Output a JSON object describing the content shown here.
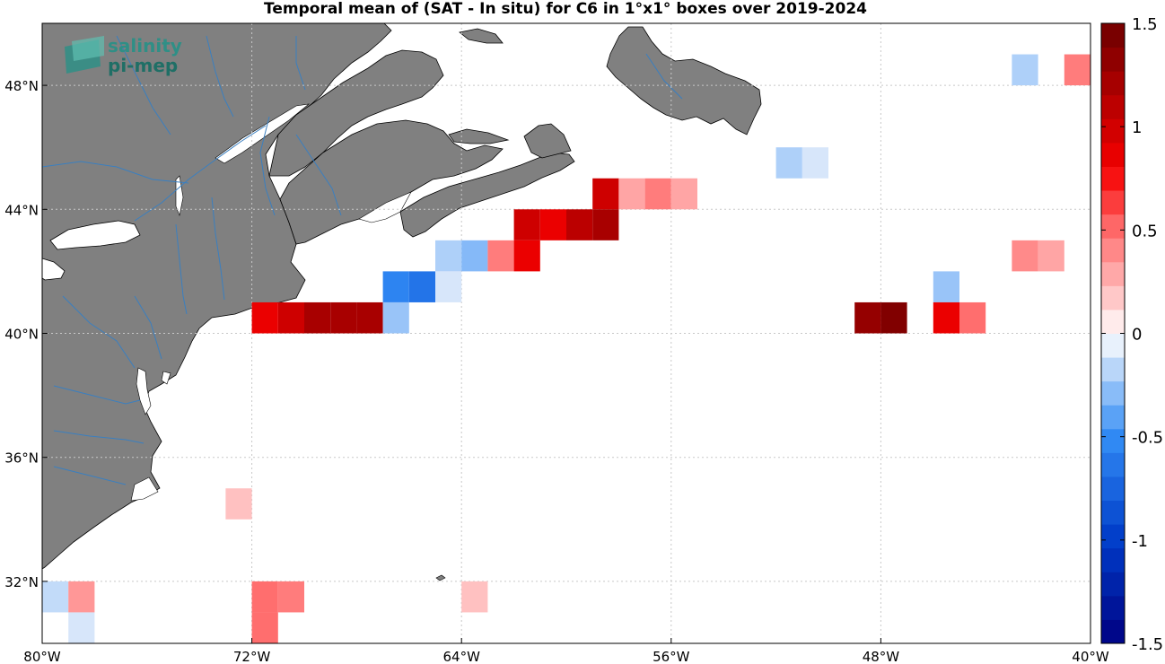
{
  "title": "Temporal mean of (SAT - In situ) for C6 in 1°x1° boxes over 2019-2024",
  "logo": {
    "line1": "salinity",
    "line2": "pi-mep"
  },
  "map": {
    "lon_range": [
      -80,
      -40
    ],
    "lat_range": [
      30,
      50
    ],
    "grid": true,
    "land_color": "#808080",
    "river_color": "#3a7fc0",
    "lon_ticks": [
      {
        "lon": -80,
        "label": "80°W"
      },
      {
        "lon": -72,
        "label": "72°W"
      },
      {
        "lon": -64,
        "label": "64°W"
      },
      {
        "lon": -56,
        "label": "56°W"
      },
      {
        "lon": -48,
        "label": "48°W"
      },
      {
        "lon": -40,
        "label": "40°W"
      }
    ],
    "lat_ticks": [
      {
        "lat": 32,
        "label": "32°N"
      },
      {
        "lat": 36,
        "label": "36°N"
      },
      {
        "lat": 40,
        "label": "40°N"
      },
      {
        "lat": 44,
        "label": "44°N"
      },
      {
        "lat": 48,
        "label": "48°N"
      }
    ]
  },
  "colorbar": {
    "range": [
      -1.5,
      1.5
    ],
    "levels": 26,
    "ticks": [
      {
        "value": 1.5,
        "label": "1.5"
      },
      {
        "value": 1,
        "label": "1"
      },
      {
        "value": 0.5,
        "label": "0.5"
      },
      {
        "value": 0,
        "label": "0"
      },
      {
        "value": -0.5,
        "label": "-0.5"
      },
      {
        "value": -1,
        "label": "-1"
      },
      {
        "value": -1.5,
        "label": "-1.5"
      }
    ]
  },
  "chart_data": {
    "type": "heatmap",
    "title": "Temporal mean of (SAT - In situ) for C6 in 1°x1° boxes over 2019-2024",
    "cell_size_deg": 1,
    "value_range": [
      -1.5,
      1.5
    ],
    "cells": [
      {
        "lon": -40.5,
        "lat": 48.5,
        "value": 0.45
      },
      {
        "lon": -42.5,
        "lat": 48.5,
        "value": -0.2
      },
      {
        "lon": -50.5,
        "lat": 45.5,
        "value": -0.1
      },
      {
        "lon": -51.5,
        "lat": 45.5,
        "value": -0.2
      },
      {
        "lon": -58.5,
        "lat": 44.5,
        "value": 1.0
      },
      {
        "lon": -57.5,
        "lat": 44.5,
        "value": 0.3
      },
      {
        "lon": -56.5,
        "lat": 44.5,
        "value": 0.45
      },
      {
        "lon": -55.5,
        "lat": 44.5,
        "value": 0.3
      },
      {
        "lon": -61.5,
        "lat": 43.5,
        "value": 1.0
      },
      {
        "lon": -60.5,
        "lat": 43.5,
        "value": 0.85
      },
      {
        "lon": -59.5,
        "lat": 43.5,
        "value": 1.1
      },
      {
        "lon": -58.5,
        "lat": 43.5,
        "value": 1.2
      },
      {
        "lon": -64.5,
        "lat": 42.5,
        "value": -0.2
      },
      {
        "lon": -63.5,
        "lat": 42.5,
        "value": -0.3
      },
      {
        "lon": -62.5,
        "lat": 42.5,
        "value": 0.45
      },
      {
        "lon": -61.5,
        "lat": 42.5,
        "value": 0.85
      },
      {
        "lon": -42.5,
        "lat": 42.5,
        "value": 0.4
      },
      {
        "lon": -41.5,
        "lat": 42.5,
        "value": 0.3
      },
      {
        "lon": -66.5,
        "lat": 41.5,
        "value": -0.55
      },
      {
        "lon": -65.5,
        "lat": 41.5,
        "value": -0.65
      },
      {
        "lon": -64.5,
        "lat": 41.5,
        "value": -0.1
      },
      {
        "lon": -45.5,
        "lat": 41.5,
        "value": -0.25
      },
      {
        "lon": -71.5,
        "lat": 40.5,
        "value": 0.85
      },
      {
        "lon": -70.5,
        "lat": 40.5,
        "value": 1.0
      },
      {
        "lon": -69.5,
        "lat": 40.5,
        "value": 1.2
      },
      {
        "lon": -68.5,
        "lat": 40.5,
        "value": 1.2
      },
      {
        "lon": -67.5,
        "lat": 40.5,
        "value": 1.2
      },
      {
        "lon": -66.5,
        "lat": 40.5,
        "value": -0.25
      },
      {
        "lon": -48.5,
        "lat": 40.5,
        "value": 1.3
      },
      {
        "lon": -47.5,
        "lat": 40.5,
        "value": 1.4
      },
      {
        "lon": -45.5,
        "lat": 40.5,
        "value": 0.85
      },
      {
        "lon": -44.5,
        "lat": 40.5,
        "value": 0.5
      },
      {
        "lon": -72.5,
        "lat": 34.5,
        "value": 0.2
      },
      {
        "lon": -79.5,
        "lat": 31.5,
        "value": -0.15
      },
      {
        "lon": -78.5,
        "lat": 31.5,
        "value": 0.35
      },
      {
        "lon": -78.5,
        "lat": 30.5,
        "value": -0.1
      },
      {
        "lon": -71.5,
        "lat": 31.5,
        "value": 0.5
      },
      {
        "lon": -70.5,
        "lat": 31.5,
        "value": 0.45
      },
      {
        "lon": -71.5,
        "lat": 30.5,
        "value": 0.5
      },
      {
        "lon": -63.5,
        "lat": 31.5,
        "value": 0.2
      }
    ]
  }
}
